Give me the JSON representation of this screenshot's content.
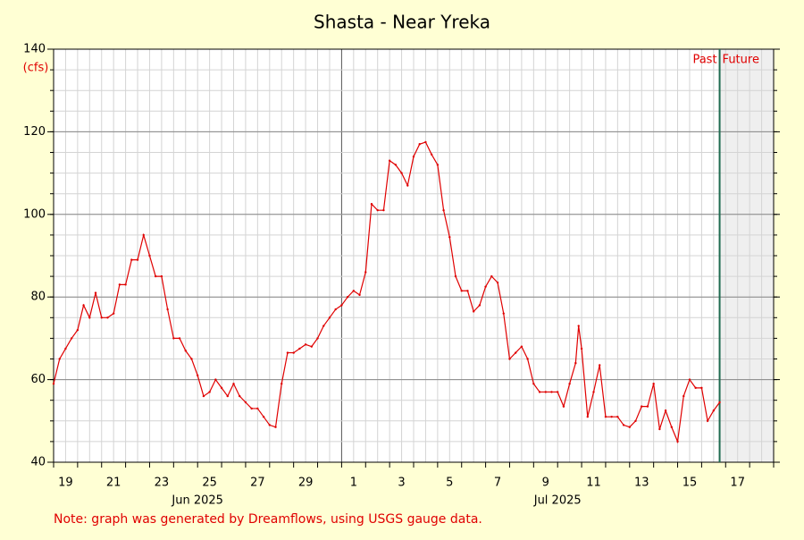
{
  "chart_data": {
    "type": "line",
    "title": "Shasta - Near Yreka",
    "y_unit": "(cfs)",
    "note": "Note: graph was generated by Dreamflows, using USGS gauge data.",
    "divider": {
      "value": "2025-07-16T18:00",
      "labels": [
        "Past",
        "Future"
      ]
    },
    "xlim": [
      "2025-06-19T00:00",
      "2025-07-19T00:00"
    ],
    "xticks": [
      {
        "value": "2025-06-19T12:00",
        "label": "19"
      },
      {
        "value": "2025-06-21T12:00",
        "label": "21"
      },
      {
        "value": "2025-06-23T12:00",
        "label": "23"
      },
      {
        "value": "2025-06-25T12:00",
        "label": "25"
      },
      {
        "value": "2025-06-27T12:00",
        "label": "27"
      },
      {
        "value": "2025-06-29T12:00",
        "label": "29"
      },
      {
        "value": "2025-07-01T12:00",
        "label": "1"
      },
      {
        "value": "2025-07-03T12:00",
        "label": "3"
      },
      {
        "value": "2025-07-05T12:00",
        "label": "5"
      },
      {
        "value": "2025-07-07T12:00",
        "label": "7"
      },
      {
        "value": "2025-07-09T12:00",
        "label": "9"
      },
      {
        "value": "2025-07-11T12:00",
        "label": "11"
      },
      {
        "value": "2025-07-13T12:00",
        "label": "13"
      },
      {
        "value": "2025-07-15T12:00",
        "label": "15"
      },
      {
        "value": "2025-07-17T12:00",
        "label": "17"
      }
    ],
    "month_labels": [
      {
        "value": "2025-06-25T00:00",
        "label": "Jun 2025"
      },
      {
        "value": "2025-07-10T00:00",
        "label": "Jul 2025"
      }
    ],
    "ylim": [
      40,
      140
    ],
    "yticks": [
      40,
      60,
      80,
      100,
      120,
      140
    ],
    "grid": true,
    "x": [
      "2025-06-19T00:00",
      "2025-06-19T06:00",
      "2025-06-19T12:00",
      "2025-06-19T18:00",
      "2025-06-20T00:00",
      "2025-06-20T06:00",
      "2025-06-20T12:00",
      "2025-06-20T18:00",
      "2025-06-21T00:00",
      "2025-06-21T06:00",
      "2025-06-21T12:00",
      "2025-06-21T18:00",
      "2025-06-22T00:00",
      "2025-06-22T06:00",
      "2025-06-22T12:00",
      "2025-06-22T18:00",
      "2025-06-23T00:00",
      "2025-06-23T06:00",
      "2025-06-23T12:00",
      "2025-06-23T18:00",
      "2025-06-24T00:00",
      "2025-06-24T06:00",
      "2025-06-24T12:00",
      "2025-06-24T18:00",
      "2025-06-25T00:00",
      "2025-06-25T06:00",
      "2025-06-25T12:00",
      "2025-06-25T18:00",
      "2025-06-26T00:00",
      "2025-06-26T06:00",
      "2025-06-26T12:00",
      "2025-06-26T18:00",
      "2025-06-27T00:00",
      "2025-06-27T06:00",
      "2025-06-27T12:00",
      "2025-06-27T18:00",
      "2025-06-28T00:00",
      "2025-06-28T06:00",
      "2025-06-28T12:00",
      "2025-06-28T18:00",
      "2025-06-29T00:00",
      "2025-06-29T06:00",
      "2025-06-29T12:00",
      "2025-06-29T18:00",
      "2025-06-30T00:00",
      "2025-06-30T06:00",
      "2025-06-30T12:00",
      "2025-06-30T18:00",
      "2025-07-01T00:00",
      "2025-07-01T06:00",
      "2025-07-01T12:00",
      "2025-07-01T18:00",
      "2025-07-02T00:00",
      "2025-07-02T06:00",
      "2025-07-02T12:00",
      "2025-07-02T18:00",
      "2025-07-03T00:00",
      "2025-07-03T06:00",
      "2025-07-03T12:00",
      "2025-07-03T18:00",
      "2025-07-04T00:00",
      "2025-07-04T06:00",
      "2025-07-04T12:00",
      "2025-07-04T18:00",
      "2025-07-05T00:00",
      "2025-07-05T06:00",
      "2025-07-05T12:00",
      "2025-07-05T18:00",
      "2025-07-06T00:00",
      "2025-07-06T06:00",
      "2025-07-06T12:00",
      "2025-07-06T18:00",
      "2025-07-07T00:00",
      "2025-07-07T06:00",
      "2025-07-07T12:00",
      "2025-07-07T18:00",
      "2025-07-08T00:00",
      "2025-07-08T06:00",
      "2025-07-08T12:00",
      "2025-07-08T18:00",
      "2025-07-09T00:00",
      "2025-07-09T06:00",
      "2025-07-09T12:00",
      "2025-07-09T18:00",
      "2025-07-10T00:00",
      "2025-07-10T06:00",
      "2025-07-10T12:00",
      "2025-07-10T18:00",
      "2025-07-10T21:00",
      "2025-07-11T00:00",
      "2025-07-11T06:00",
      "2025-07-11T12:00",
      "2025-07-11T18:00",
      "2025-07-12T00:00",
      "2025-07-12T06:00",
      "2025-07-12T12:00",
      "2025-07-12T18:00",
      "2025-07-13T00:00",
      "2025-07-13T06:00",
      "2025-07-13T12:00",
      "2025-07-13T18:00",
      "2025-07-14T00:00",
      "2025-07-14T06:00",
      "2025-07-14T12:00",
      "2025-07-14T18:00",
      "2025-07-15T00:00",
      "2025-07-15T06:00",
      "2025-07-15T12:00",
      "2025-07-15T18:00",
      "2025-07-16T00:00",
      "2025-07-16T06:00",
      "2025-07-16T12:00",
      "2025-07-16T18:00"
    ],
    "series": [
      {
        "name": "Shasta - Near Yreka",
        "color": "#e00000",
        "values": [
          59,
          65,
          67.5,
          70,
          72,
          78,
          75,
          81,
          75,
          75,
          76,
          83,
          83,
          89,
          89,
          95,
          90,
          85,
          85,
          77,
          70,
          70,
          67,
          65,
          61,
          56,
          57,
          60,
          58,
          56,
          59,
          56,
          54.5,
          53,
          53,
          51,
          49,
          48.5,
          59,
          66.5,
          66.5,
          67.5,
          68.5,
          68,
          70,
          73,
          75,
          77,
          78,
          80,
          81.5,
          80.5,
          86,
          102.5,
          101,
          101,
          113,
          112,
          110,
          107,
          114,
          117,
          117.5,
          114.5,
          112,
          101,
          94.5,
          85,
          81.5,
          81.5,
          76.5,
          78,
          82.5,
          85,
          83.5,
          76,
          65,
          66.5,
          68,
          65,
          59,
          57,
          57,
          57,
          57,
          53.5,
          59,
          64,
          73,
          67.5,
          51,
          57,
          63.5,
          51,
          51,
          51,
          49,
          48.5,
          50,
          53.5,
          53.5,
          59,
          48,
          52.5,
          48.5,
          45,
          56,
          60,
          58,
          58,
          50,
          52.5,
          54.5
        ]
      }
    ]
  }
}
